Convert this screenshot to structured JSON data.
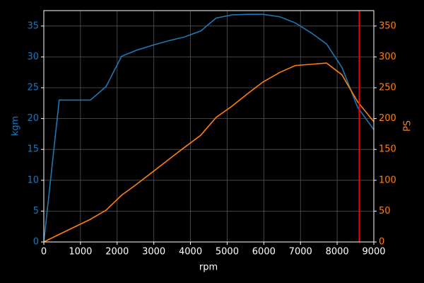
{
  "chart_data": {
    "type": "line",
    "xlabel": "rpm",
    "ylabel": "kgm",
    "y2label": "PS",
    "x": [
      0,
      420,
      1270,
      1700,
      2120,
      2540,
      2970,
      3390,
      3820,
      4280,
      4700,
      5130,
      5550,
      5970,
      6440,
      6860,
      7290,
      7710,
      8130,
      8560,
      9000
    ],
    "series": [
      {
        "color": "#1f77b4",
        "axis": "y",
        "values": [
          0,
          23,
          23,
          25.2,
          30.1,
          31.1,
          31.9,
          32.6,
          33.2,
          34.2,
          36.3,
          36.8,
          36.9,
          36.9,
          36.5,
          35.5,
          33.9,
          32.1,
          28.3,
          21.8,
          18.2
        ]
      },
      {
        "color": "#ff7f0e",
        "axis": "y2",
        "values": [
          0,
          12.3,
          36.7,
          51.6,
          75.7,
          94,
          113.6,
          133,
          152.6,
          173,
          202,
          220,
          240,
          259,
          275,
          286,
          288,
          290,
          271,
          227,
          195
        ]
      }
    ],
    "vline": {
      "value": 8600,
      "color": "#ff0000"
    },
    "xlim": [
      0,
      9000
    ],
    "xticks": [
      0,
      1000,
      2000,
      3000,
      4000,
      5000,
      6000,
      7000,
      8000,
      9000
    ],
    "ylim": [
      0,
      37.5
    ],
    "yticks": [
      0,
      5,
      10,
      15,
      20,
      25,
      30,
      35
    ],
    "y2lim": [
      0,
      375
    ],
    "y2ticks": [
      0,
      50,
      100,
      150,
      200,
      250,
      300,
      350
    ],
    "grid": true
  }
}
